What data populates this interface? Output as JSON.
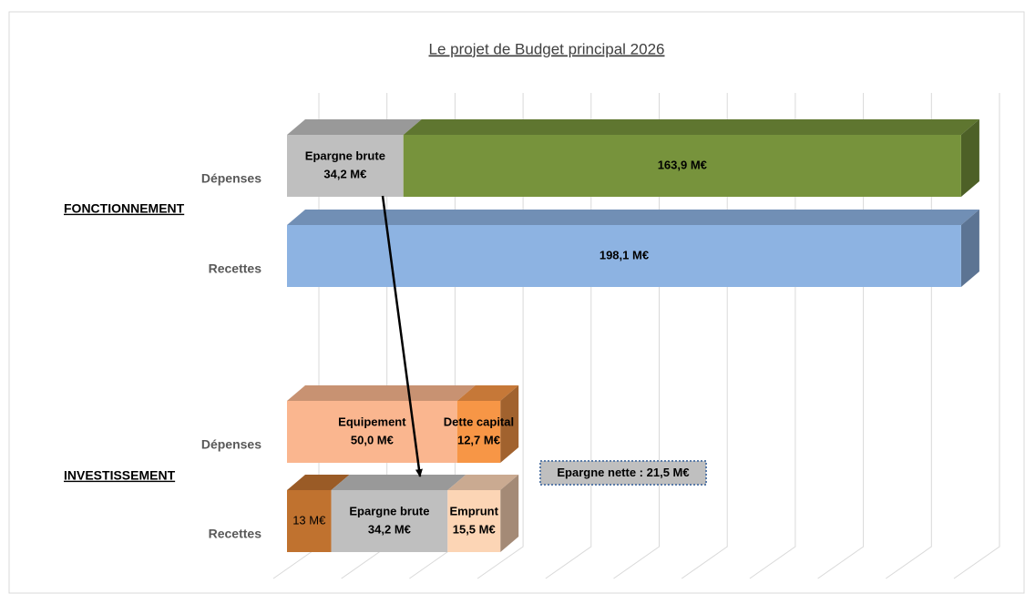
{
  "chart_data": {
    "type": "stacked-bar-3d",
    "title": "Le projet de Budget principal 2026",
    "xlim": [
      0,
      200
    ],
    "xticks": [
      0,
      20,
      40,
      60,
      80,
      100,
      120,
      140,
      160,
      180,
      200
    ],
    "grid": true,
    "groups": [
      {
        "label": "FONCTIONNEMENT",
        "rows": [
          {
            "label": "Dépenses",
            "segments": [
              {
                "name": "Epargne brute",
                "value": 34.2,
                "value_label": "34,2 M€",
                "color": "#bfbfbf"
              },
              {
                "value": 163.9,
                "value_label": "163,9 M€",
                "color": "#77933c"
              }
            ]
          },
          {
            "label": "Recettes",
            "segments": [
              {
                "value": 198.1,
                "value_label": "198,1 M€",
                "color": "#8db3e2"
              }
            ]
          }
        ]
      },
      {
        "label": "INVESTISSEMENT",
        "rows": [
          {
            "label": "Dépenses",
            "segments": [
              {
                "name": "Equipement",
                "value": 50.0,
                "value_label": "50,0 M€",
                "color": "#fab68f"
              },
              {
                "name": "Dette capital",
                "value": 12.7,
                "value_label": "12,7 M€",
                "color": "#f79646"
              }
            ]
          },
          {
            "label": "Recettes",
            "segments": [
              {
                "value": 13,
                "value_label": "13 M€",
                "color": "#c0722f"
              },
              {
                "name": "Epargne brute",
                "value": 34.2,
                "value_label": "34,2 M€",
                "color": "#bfbfbf"
              },
              {
                "name": "Emprunt",
                "value": 15.5,
                "value_label": "15,5 M€",
                "color": "#fcd5b5"
              }
            ]
          }
        ]
      }
    ],
    "annotation": "Epargne nette : 21,5 M€"
  }
}
